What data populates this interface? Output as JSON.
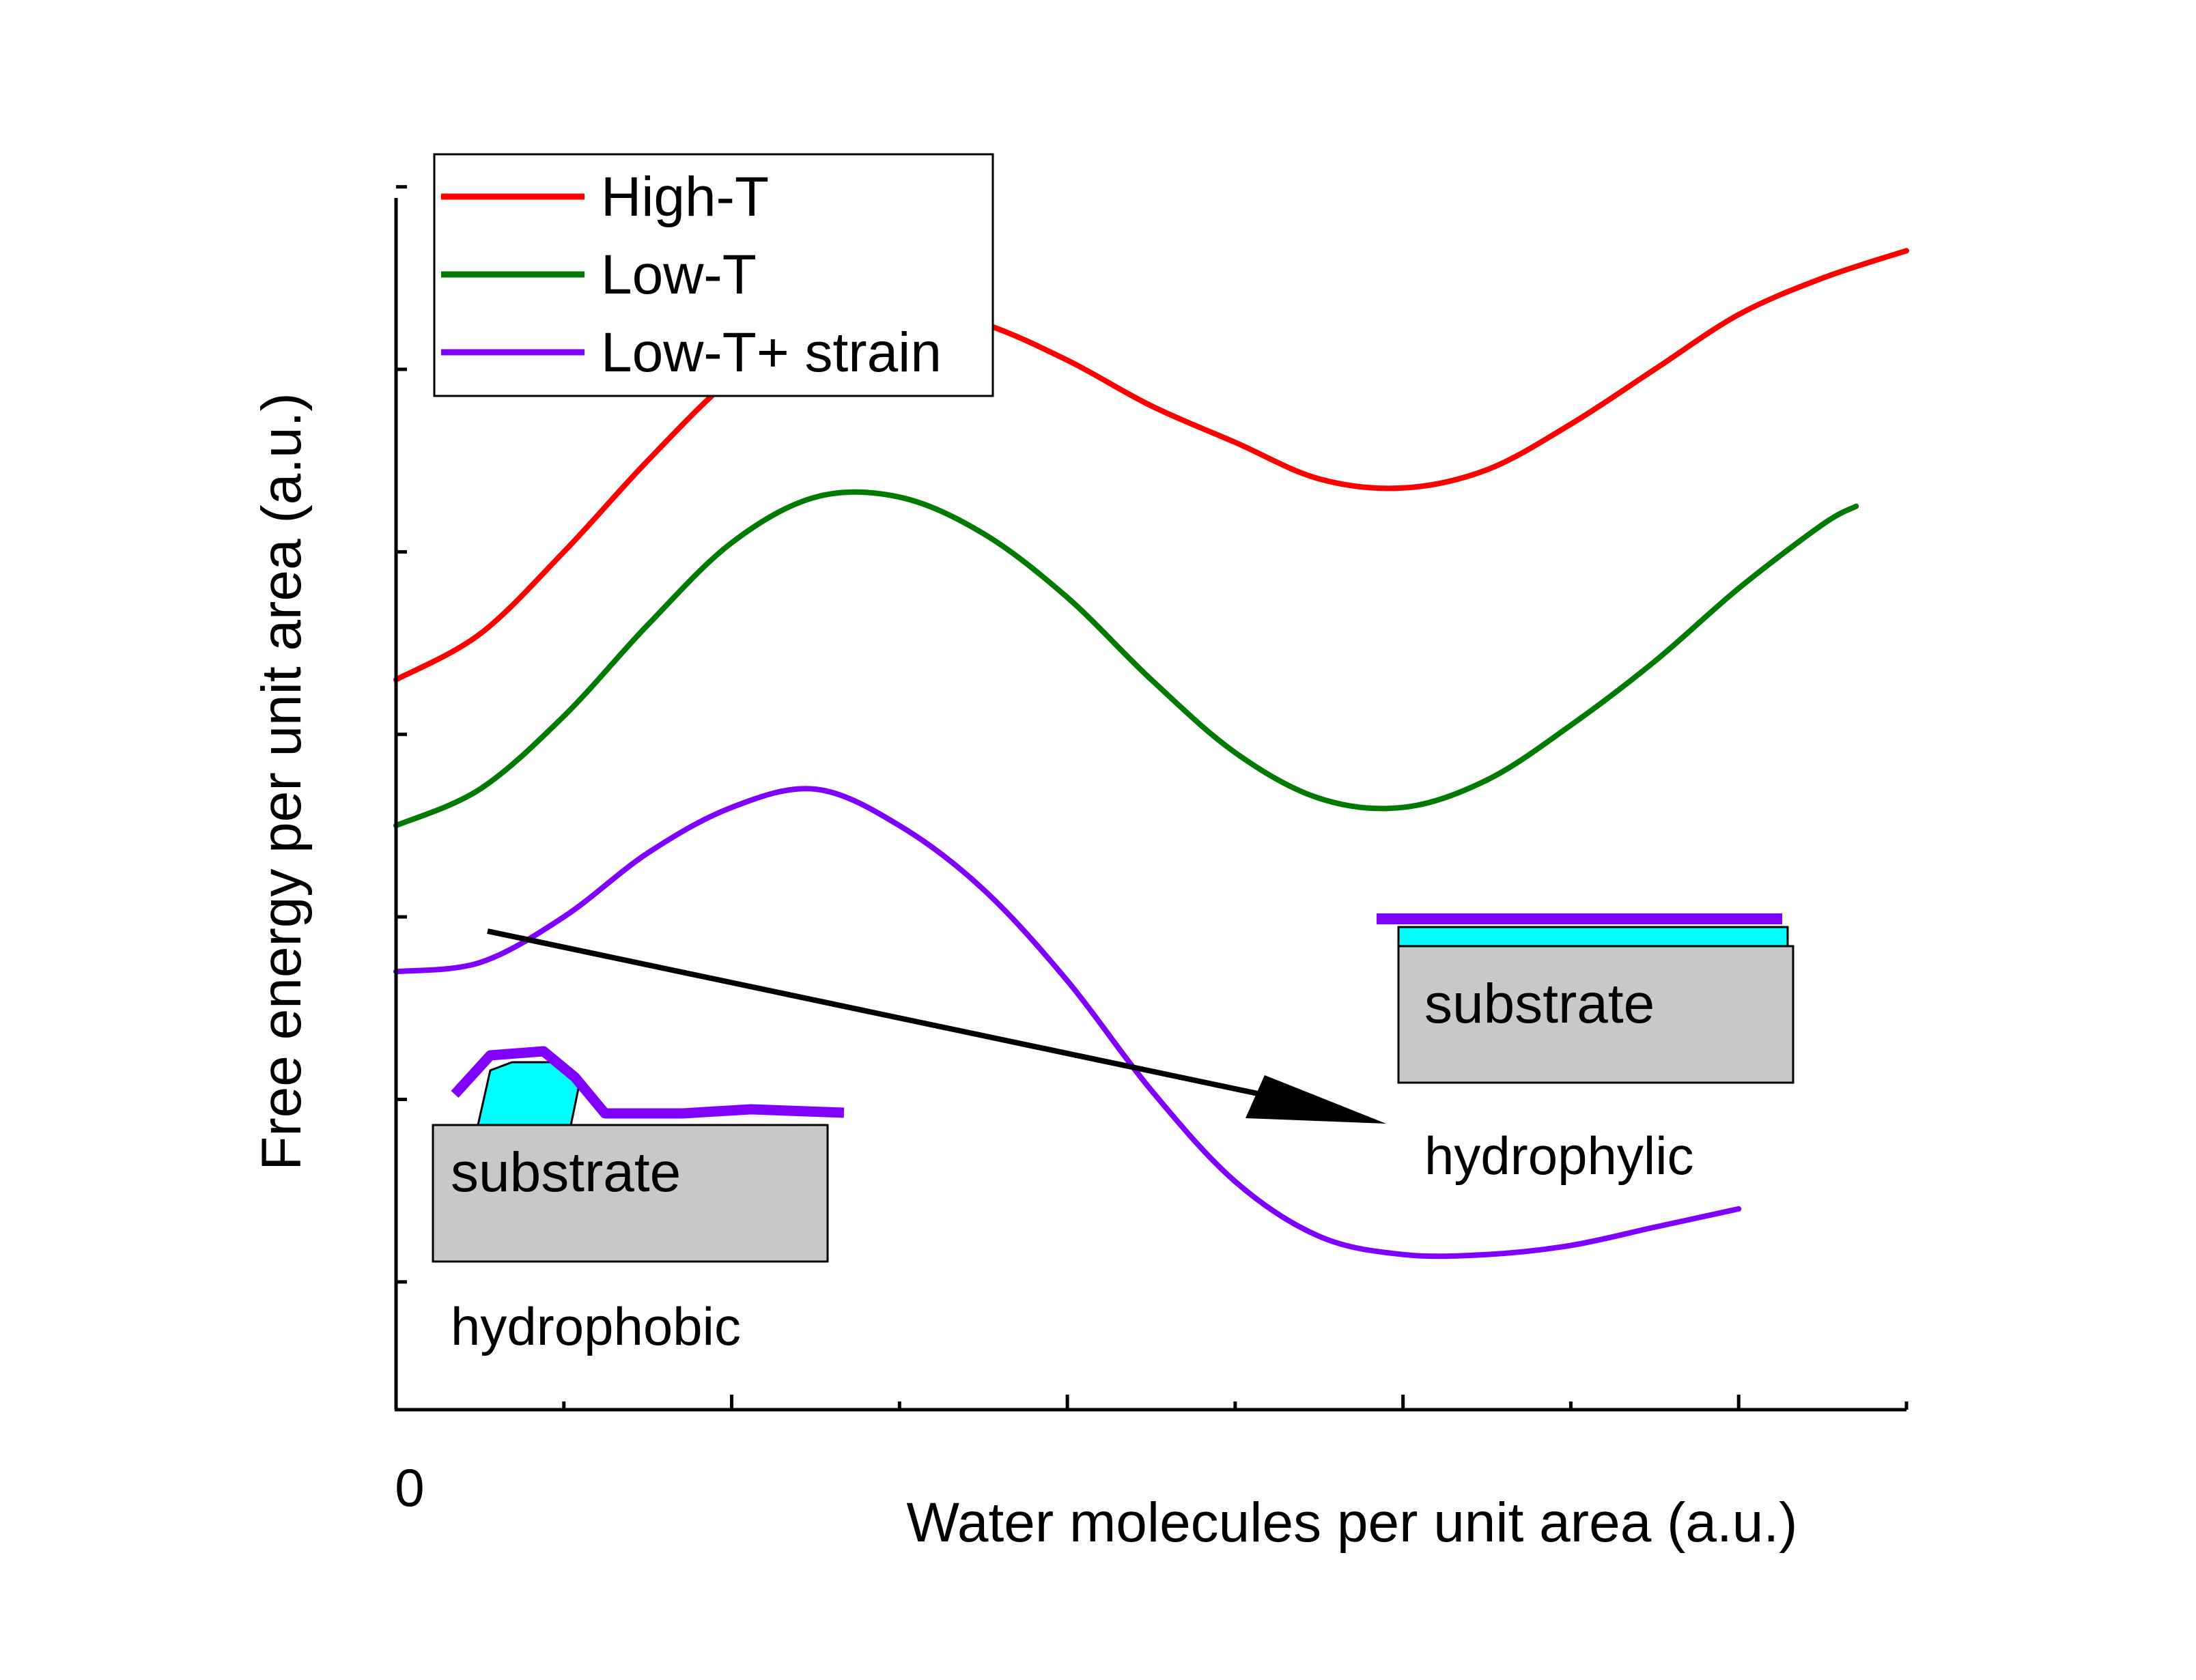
{
  "chart_data": {
    "type": "line",
    "title": "",
    "xlabel": "Water molecules per unit area (a.u.)",
    "ylabel": "Free energy per unit area (a.u.)",
    "x_tick_labels": [
      {
        "value": 0,
        "label": "0"
      }
    ],
    "xlim": [
      0,
      9
    ],
    "ylim": [
      0,
      7.2
    ],
    "legend": {
      "position": "top-left",
      "entries": [
        "High-T",
        "Low-T",
        "Low-T+ strain"
      ]
    },
    "series": [
      {
        "name": "High-T",
        "color": "#ff0000",
        "x": [
          0,
          0.5,
          1,
          1.5,
          2,
          2.5,
          3,
          3.5,
          4,
          4.5,
          5,
          5.5,
          6,
          6.5,
          7,
          7.5,
          8,
          8.5,
          9
        ],
        "y": [
          4,
          4.25,
          4.7,
          5.2,
          5.65,
          5.95,
          6.05,
          5.95,
          5.75,
          5.5,
          5.3,
          5.1,
          5.05,
          5.15,
          5.4,
          5.7,
          6.0,
          6.2,
          6.35
        ]
      },
      {
        "name": "Low-T",
        "color": "#007a00",
        "x": [
          0,
          0.5,
          1,
          1.5,
          2,
          2.5,
          3,
          3.5,
          4,
          4.5,
          5,
          5.5,
          6,
          6.5,
          7,
          7.5,
          8,
          8.5,
          8.7
        ],
        "y": [
          3.2,
          3.4,
          3.8,
          4.3,
          4.75,
          5.0,
          5.0,
          4.8,
          4.45,
          4.0,
          3.6,
          3.35,
          3.3,
          3.45,
          3.75,
          4.1,
          4.5,
          4.85,
          4.95
        ]
      },
      {
        "name": "Low-T+ strain",
        "color": "#7f00ff",
        "x": [
          0,
          0.5,
          1,
          1.5,
          2,
          2.5,
          3,
          3.5,
          4,
          4.5,
          5,
          5.5,
          6,
          6.5,
          7,
          7.5,
          8
        ],
        "y": [
          2.4,
          2.45,
          2.7,
          3.05,
          3.3,
          3.4,
          3.2,
          2.85,
          2.35,
          1.75,
          1.25,
          0.95,
          0.85,
          0.85,
          0.9,
          1.0,
          1.1
        ]
      }
    ],
    "annotations": {
      "left_inset": {
        "block_label": "substrate",
        "caption": "hydrophobic"
      },
      "right_inset": {
        "block_label": "substrate",
        "caption": "hydrophylic"
      },
      "arrow": "hydrophobic to hydrophylic"
    }
  },
  "colors": {
    "substrate": "#c8c8c8",
    "water": "#00ffff",
    "strain_film": "#7f00ff",
    "arrow": "#000000"
  }
}
